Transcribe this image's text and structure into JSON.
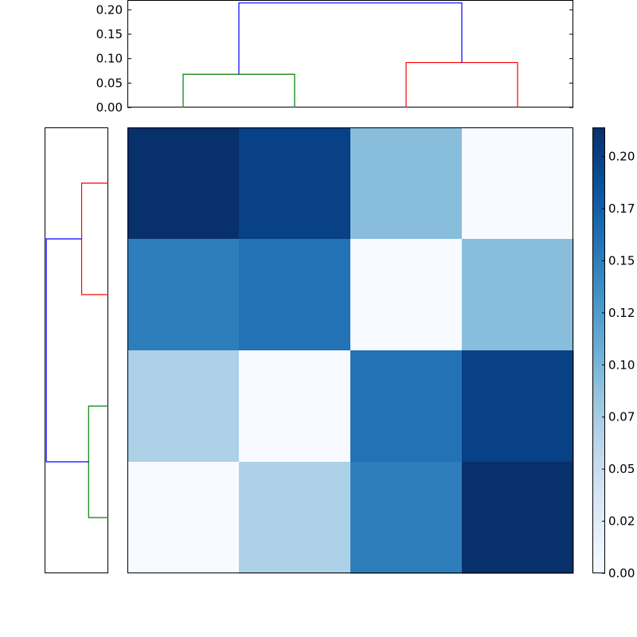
{
  "chart_data": [
    {
      "type": "dendrogram",
      "orientation": "top",
      "ylim": [
        0,
        0.22
      ],
      "yticks": [
        0.0,
        0.05,
        0.1,
        0.15,
        0.2
      ],
      "ytick_labels": [
        "0.00",
        "0.05",
        "0.10",
        "0.15",
        "0.20"
      ],
      "leaves": 4,
      "links": [
        {
          "left": 0,
          "right": 1,
          "height": 0.068,
          "color": "#008000"
        },
        {
          "left": 2,
          "right": 3,
          "height": 0.092,
          "color": "#ff0000"
        },
        {
          "left": [
            0,
            1
          ],
          "right": [
            2,
            3
          ],
          "height": 0.214,
          "color": "#0000ff"
        }
      ]
    },
    {
      "type": "dendrogram",
      "orientation": "left",
      "leaves": 4,
      "links": [
        {
          "left": 0,
          "right": 1,
          "height": 0.068,
          "color": "#008000"
        },
        {
          "left": 2,
          "right": 3,
          "height": 0.092,
          "color": "#ff0000"
        },
        {
          "left": [
            0,
            1
          ],
          "right": [
            2,
            3
          ],
          "height": 0.214,
          "color": "#0000ff"
        }
      ]
    },
    {
      "type": "heatmap",
      "rows": 4,
      "cols": 4,
      "vmin": 0.0,
      "vmax": 0.214,
      "colormap": "Blues",
      "values": [
        [
          0.214,
          0.2,
          0.092,
          0.0
        ],
        [
          0.15,
          0.16,
          0.0,
          0.092
        ],
        [
          0.07,
          0.0,
          0.16,
          0.2
        ],
        [
          0.0,
          0.07,
          0.15,
          0.214
        ]
      ]
    },
    {
      "type": "colorbar",
      "colormap": "Blues",
      "vmin": 0.0,
      "vmax": 0.214,
      "ticks": [
        0.0,
        0.025,
        0.05,
        0.075,
        0.1,
        0.125,
        0.15,
        0.175,
        0.2
      ],
      "tick_labels": [
        "0.00",
        "0.02",
        "0.05",
        "0.07",
        "0.10",
        "0.12",
        "0.15",
        "0.17",
        "0.20"
      ]
    }
  ]
}
